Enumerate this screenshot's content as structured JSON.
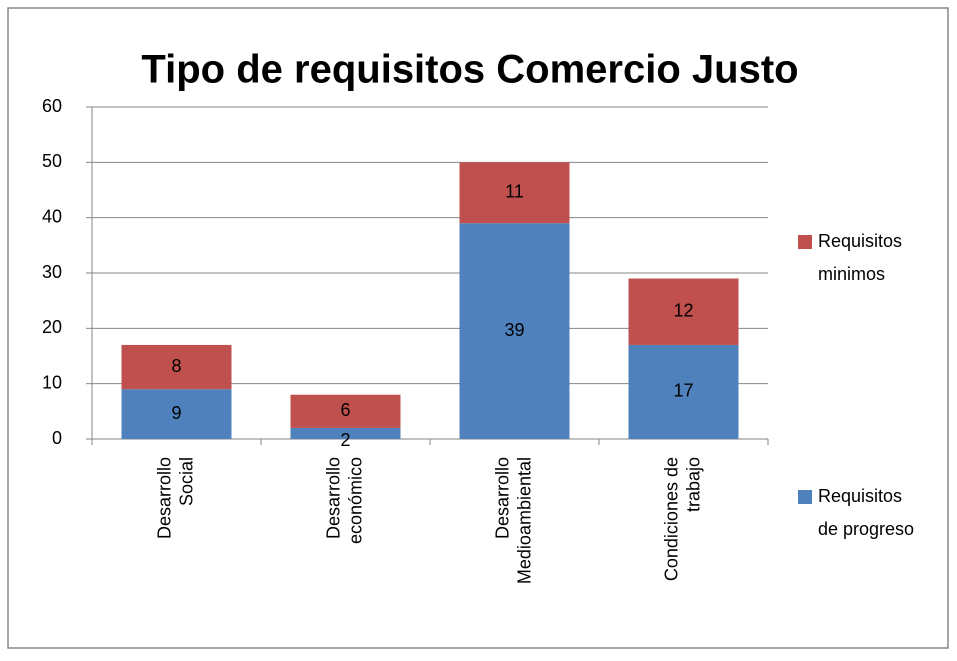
{
  "chart_data": {
    "type": "stacked_bar",
    "title": "Tipo de requisitos Comercio Justo",
    "categories": [
      "Desarrollo\nSocial",
      "Desarrollo\neconómico",
      "Desarrollo\nMedioambiental",
      "Condiciones de\ntrabajo"
    ],
    "series": [
      {
        "name": "Requisitos\nde progreso",
        "color": "#4f81bd",
        "values": [
          9,
          2,
          39,
          17
        ]
      },
      {
        "name": "Requisitos\nminimos",
        "color": "#c0504d",
        "values": [
          8,
          6,
          11,
          12
        ]
      }
    ],
    "ylim": [
      0,
      60
    ],
    "yticks": [
      0,
      10,
      20,
      30,
      40,
      50,
      60
    ],
    "grid": true,
    "legend": "right"
  }
}
